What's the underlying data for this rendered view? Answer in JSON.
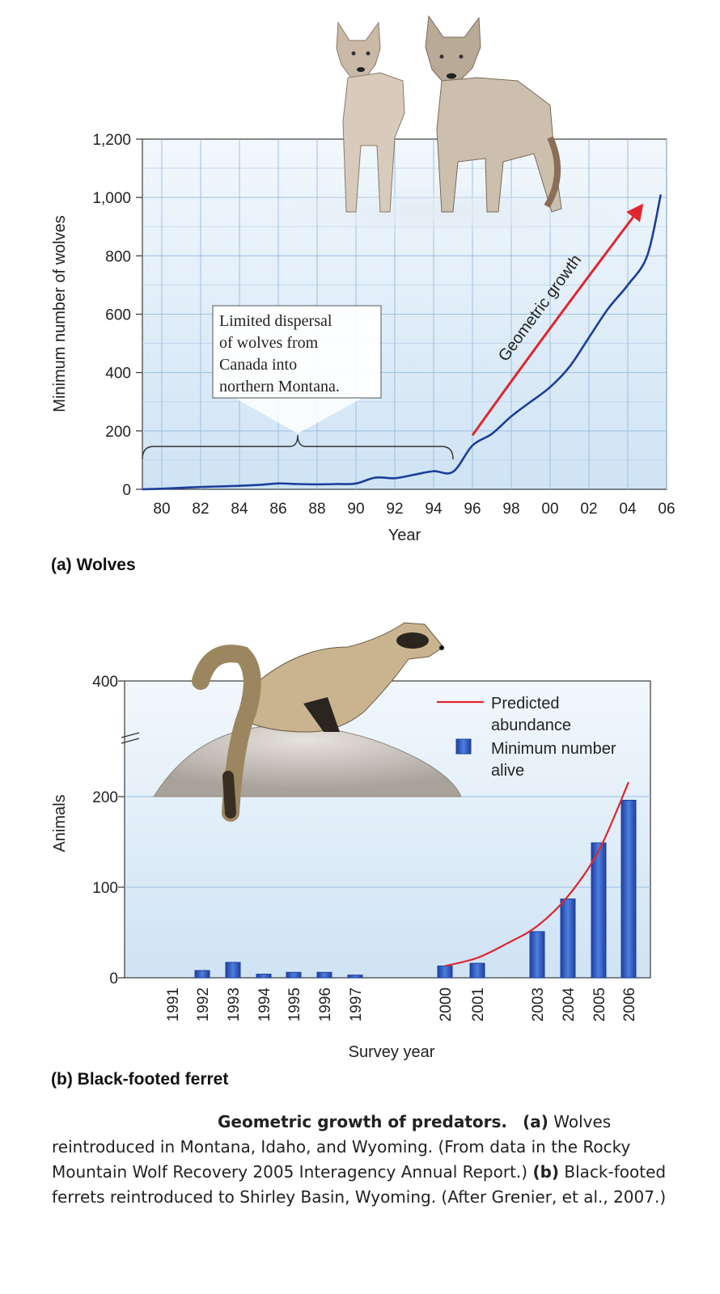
{
  "chart_data": [
    {
      "type": "line",
      "panel_label": "(a) Wolves",
      "xlabel": "Year",
      "ylabel": "Minimum number of wolves",
      "xlim": [
        1979,
        2006
      ],
      "ylim": [
        0,
        1200
      ],
      "x_ticks": [
        "80",
        "82",
        "84",
        "86",
        "88",
        "90",
        "92",
        "94",
        "96",
        "98",
        "00",
        "02",
        "04",
        "06"
      ],
      "y_ticks": [
        "0",
        "200",
        "400",
        "600",
        "800",
        "1,000",
        "1,200"
      ],
      "grid": true,
      "series": [
        {
          "color": "#1a3f9a",
          "x": [
            1979,
            1980,
            1981,
            1982,
            1983,
            1984,
            1985,
            1986,
            1987,
            1988,
            1989,
            1990,
            1991,
            1992,
            1993,
            1994,
            1995,
            1996,
            1997,
            1998,
            1999,
            2000,
            2001,
            2002,
            2003,
            2004,
            2005,
            2005.7
          ],
          "y": [
            0,
            2,
            5,
            8,
            10,
            12,
            15,
            20,
            18,
            17,
            18,
            20,
            40,
            38,
            50,
            62,
            60,
            150,
            190,
            250,
            300,
            350,
            420,
            520,
            620,
            700,
            800,
            1010
          ]
        }
      ],
      "annotations": [
        {
          "text_lines": [
            "Limited dispersal",
            "of wolves from",
            "Canada into",
            "northern Montana."
          ],
          "x_range": [
            1979,
            1995
          ]
        },
        {
          "text": "Geometric growth",
          "color": "#e0262e",
          "x": [
            1996,
            2004.7
          ],
          "y": [
            185,
            970
          ]
        }
      ]
    },
    {
      "type": "bar",
      "panel_label": "(b) Black-footed ferret",
      "xlabel": "Survey year",
      "ylabel": "Animals",
      "ylim": [
        0,
        400
      ],
      "axis_break": [
        200,
        400
      ],
      "y_ticks": [
        "0",
        "100",
        "200",
        "400"
      ],
      "categories": [
        "1991",
        "1992",
        "1993",
        "1994",
        "1995",
        "1996",
        "1997",
        "2000",
        "2001",
        "2003",
        "2004",
        "2005",
        "2006"
      ],
      "series": [
        {
          "name": "Minimum number alive",
          "color": "#2a58c0",
          "values": [
            0,
            8,
            17,
            4,
            6,
            6,
            3,
            13,
            16,
            51,
            87,
            149,
            196
          ]
        },
        {
          "name": "Predicted abundance",
          "color": "#e0262e",
          "type": "line",
          "x": [
            2000,
            2001,
            2002,
            2003,
            2004,
            2005,
            2006
          ],
          "y": [
            13,
            22,
            38,
            57,
            90,
            140,
            225
          ]
        }
      ],
      "legend": {
        "items": [
          "Predicted abundance",
          "Minimum number alive"
        ],
        "placement": "top-right"
      }
    }
  ],
  "caption": {
    "title": "Geometric growth of predators.",
    "a_label": "(a)",
    "a_text": "Wolves reintroduced in Montana, Idaho, and Wyoming. (From data in the Rocky Mountain Wolf Recovery 2005 Interagency Annual Report.)",
    "b_label": "(b)",
    "b_text": "Black-footed ferrets reintroduced to Shirley Basin, Wyoming. (After Grenier, et al., 2007.)"
  }
}
